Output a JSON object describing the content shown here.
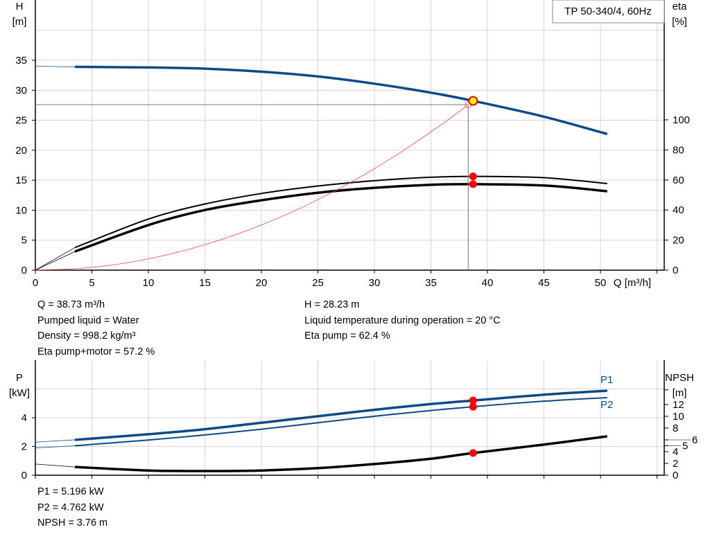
{
  "chart_data": [
    {
      "type": "line",
      "title": "TP 50-340/4, 60Hz",
      "xlabel": "Q [m³/h]",
      "ylabel_left": [
        "H",
        "[m]"
      ],
      "ylabel_right": [
        "eta",
        "[%]"
      ],
      "xlim": [
        0,
        55
      ],
      "ylim_left": [
        0,
        40
      ],
      "ylim_right": [
        0,
        100
      ],
      "x_ticks": [
        0,
        5,
        10,
        15,
        20,
        25,
        30,
        35,
        40,
        45,
        50
      ],
      "y_ticks_left": [
        0,
        5,
        10,
        15,
        20,
        25,
        30,
        35
      ],
      "y_ticks_right": [
        0,
        20,
        40,
        60,
        80,
        100
      ],
      "grid": true,
      "series": [
        {
          "key": "H",
          "axis": "left",
          "color": "#0a4a86",
          "width": 3.5,
          "extension": {
            "x": [
              0,
              3.5
            ],
            "y": [
              34.0,
              33.9
            ]
          },
          "x": [
            3.5,
            10,
            15,
            20,
            25,
            30,
            35,
            38.73,
            45,
            50.6
          ],
          "y": [
            33.9,
            33.8,
            33.6,
            33.1,
            32.3,
            31.1,
            29.6,
            28.23,
            25.6,
            22.7
          ]
        },
        {
          "key": "eta_pump",
          "axis": "right",
          "color": "#000000",
          "width": 2,
          "extension": {
            "x": [
              0,
              3.5
            ],
            "y": [
              0,
              15
            ]
          },
          "x": [
            3.5,
            10,
            15,
            20,
            25,
            30,
            35,
            38.73,
            45,
            50.6
          ],
          "y": [
            15,
            34,
            44,
            51,
            56,
            59.5,
            61.8,
            62.4,
            61.5,
            57.6
          ]
        },
        {
          "key": "eta_pump_motor",
          "axis": "right",
          "color": "#000000",
          "width": 3.5,
          "extension": {
            "x": [
              0,
              3.5
            ],
            "y": [
              0,
              12.4
            ]
          },
          "x": [
            3.5,
            10,
            15,
            20,
            25,
            30,
            35,
            38.73,
            45,
            50.6
          ],
          "y": [
            12.4,
            30,
            40,
            46.5,
            51.5,
            54.8,
            56.8,
            57.2,
            56.3,
            52.5
          ]
        },
        {
          "key": "system_curve",
          "axis": "left",
          "color": "#ff4040",
          "width": 0.8,
          "x": [
            0,
            4,
            8,
            12,
            16,
            20,
            24,
            28,
            32,
            36,
            38.3
          ],
          "y": [
            0,
            0.3,
            1.2,
            2.71,
            4.82,
            7.53,
            10.84,
            14.75,
            19.26,
            24.38,
            27.6
          ]
        }
      ],
      "duty_point": {
        "Q": 38.73,
        "H": 28.23,
        "eta_pump": 62.4,
        "eta_pump_motor": 57.2
      },
      "system_point": {
        "Q": 38.3,
        "H": 27.6
      }
    },
    {
      "type": "line",
      "xlabel": "",
      "ylabel_left": [
        "P",
        "[kW]"
      ],
      "ylabel_right": [
        "NPSH",
        "[m]"
      ],
      "xlim": [
        0,
        55
      ],
      "ylim_left": [
        0,
        8
      ],
      "ylim_right": [
        0,
        14.5
      ],
      "y_ticks_left": [
        0,
        2,
        4
      ],
      "y_ticks_right": [
        0,
        2,
        4,
        5,
        6,
        8,
        10,
        12,
        14.5
      ],
      "y_tick_labels_right": [
        "0",
        "2",
        "4",
        "5",
        "6",
        "8",
        "10",
        "12",
        ""
      ],
      "grid": true,
      "series": [
        {
          "key": "P1",
          "name": "P1",
          "axis": "left",
          "color": "#0a4a86",
          "width": 3.5,
          "extension": {
            "x": [
              0,
              3.5
            ],
            "y": [
              2.3,
              2.46
            ]
          },
          "x": [
            3.5,
            10,
            15,
            20,
            25,
            30,
            35,
            38.73,
            45,
            50.6
          ],
          "y": [
            2.46,
            2.85,
            3.2,
            3.65,
            4.1,
            4.55,
            4.95,
            5.196,
            5.6,
            5.88
          ]
        },
        {
          "key": "P2",
          "name": "P2",
          "axis": "left",
          "color": "#0a4a86",
          "width": 2,
          "extension": {
            "x": [
              0,
              3.5
            ],
            "y": [
              1.9,
              2.05
            ]
          },
          "x": [
            3.5,
            10,
            15,
            20,
            25,
            30,
            35,
            38.73,
            45,
            50.6
          ],
          "y": [
            2.05,
            2.45,
            2.8,
            3.2,
            3.65,
            4.1,
            4.5,
            4.762,
            5.15,
            5.4
          ]
        },
        {
          "key": "NPSH",
          "axis": "right",
          "color": "#000000",
          "width": 3.5,
          "extension": {
            "x": [
              0,
              3.5
            ],
            "y": [
              1.9,
              1.4
            ]
          },
          "x": [
            3.5,
            10,
            15,
            20,
            25,
            30,
            35,
            38.73,
            45,
            50.6
          ],
          "y": [
            1.4,
            0.8,
            0.7,
            0.8,
            1.2,
            1.9,
            2.8,
            3.76,
            5.2,
            6.6
          ]
        }
      ],
      "duty_point": {
        "Q": 38.73,
        "P1": 5.196,
        "P2": 4.762,
        "NPSH": 3.76
      }
    }
  ],
  "info_top": {
    "left": [
      "Q = 38.73 m³/h",
      "Pumped liquid = Water",
      "Density = 998.2 kg/m³",
      "Eta pump+motor = 57.2 %"
    ],
    "right": [
      "H = 28.23 m",
      "Liquid temperature during operation = 20 °C",
      "Eta pump = 62.4 %"
    ]
  },
  "info_bottom": [
    "P1 = 5.196 kW",
    "P2 = 4.762 kW",
    "NPSH = 3.76 m"
  ],
  "colors": {
    "curve_blue": "#0a4a86",
    "marker_red": "#ff0000",
    "duty_yellow": "#ffff00",
    "grid": "#d4d4d4"
  }
}
